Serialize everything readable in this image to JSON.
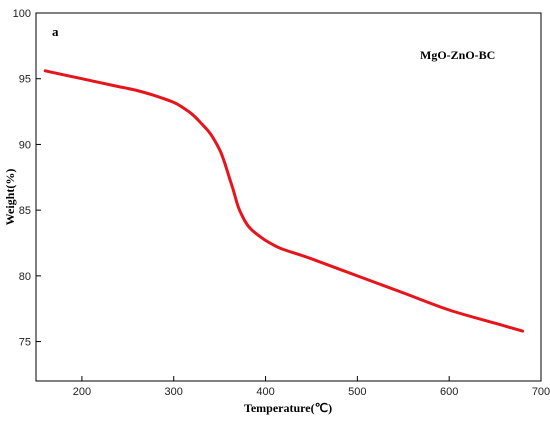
{
  "chart_data": {
    "type": "line",
    "panel_label": "a",
    "xlabel": "Temperature(℃)",
    "ylabel": "Weight(%)",
    "xlim": [
      150,
      700
    ],
    "ylim": [
      72,
      100
    ],
    "xticks": [
      200,
      300,
      400,
      500,
      600,
      700
    ],
    "yticks": [
      75,
      80,
      85,
      90,
      95,
      100
    ],
    "grid": false,
    "annotation": "MgO-ZnO-BC",
    "series": [
      {
        "name": "MgO-ZnO-BC",
        "color": "#e8141b",
        "x": [
          160,
          180,
          200,
          220,
          240,
          260,
          280,
          300,
          310,
          320,
          330,
          340,
          350,
          355,
          360,
          365,
          370,
          375,
          380,
          385,
          390,
          400,
          410,
          420,
          450,
          500,
          550,
          600,
          650,
          680
        ],
        "y": [
          95.6,
          95.3,
          95.0,
          94.7,
          94.4,
          94.1,
          93.7,
          93.2,
          92.8,
          92.3,
          91.6,
          90.8,
          89.6,
          88.7,
          87.6,
          86.5,
          85.3,
          84.5,
          83.9,
          83.5,
          83.2,
          82.7,
          82.3,
          82.0,
          81.3,
          80.0,
          78.7,
          77.4,
          76.4,
          75.8
        ]
      }
    ]
  }
}
